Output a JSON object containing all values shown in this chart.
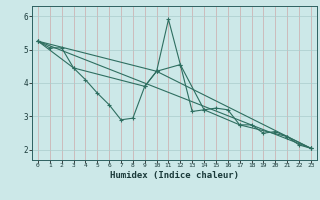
{
  "xlabel": "Humidex (Indice chaleur)",
  "bg_color": "#cce8e8",
  "grid_color": "#aacccc",
  "line_color": "#2e6e60",
  "xlim": [
    -0.5,
    23.5
  ],
  "ylim": [
    1.7,
    6.3
  ],
  "xticks": [
    0,
    1,
    2,
    3,
    4,
    5,
    6,
    7,
    8,
    9,
    10,
    11,
    12,
    13,
    14,
    15,
    16,
    17,
    18,
    19,
    20,
    21,
    22,
    23
  ],
  "yticks": [
    2,
    3,
    4,
    5,
    6
  ],
  "series": [
    {
      "x": [
        0,
        1,
        2,
        3,
        4,
        5,
        6,
        7,
        8,
        9,
        10,
        11,
        12,
        13,
        14,
        15,
        16,
        17,
        18,
        19,
        20,
        21,
        22,
        23
      ],
      "y": [
        5.25,
        5.05,
        5.05,
        4.45,
        4.1,
        3.7,
        3.35,
        2.9,
        2.95,
        3.9,
        4.35,
        5.9,
        4.55,
        3.15,
        3.2,
        3.25,
        3.2,
        2.75,
        2.75,
        2.5,
        2.55,
        2.4,
        2.15,
        2.05
      ],
      "marker": true
    },
    {
      "x": [
        0,
        3,
        9,
        10,
        12,
        14,
        17,
        21,
        23
      ],
      "y": [
        5.25,
        4.45,
        3.9,
        4.35,
        4.55,
        3.2,
        2.75,
        2.4,
        2.05
      ],
      "marker": true
    },
    {
      "x": [
        0,
        10,
        23
      ],
      "y": [
        5.25,
        4.35,
        2.05
      ],
      "marker": true
    },
    {
      "x": [
        0,
        23
      ],
      "y": [
        5.25,
        2.05
      ],
      "marker": false
    }
  ]
}
